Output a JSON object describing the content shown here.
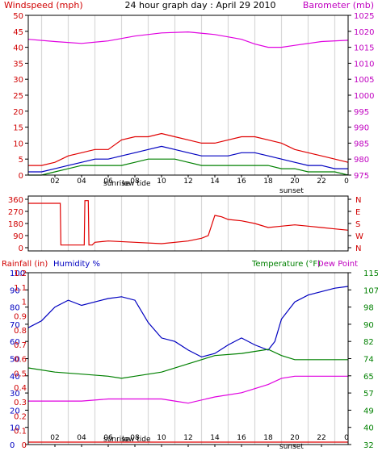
{
  "chart_data": [
    {
      "type": "line",
      "title": "24 hour graph day : April 29 2010",
      "y_left_label": "Windspeed (mph)",
      "y_right_label": "Barometer (mb)",
      "x_ticks": [
        "02",
        "04",
        "06",
        "08",
        "10",
        "12",
        "14",
        "16",
        "18",
        "20",
        "22"
      ],
      "x_end_label": "0",
      "annotations": [
        "sunrise",
        "low tide",
        "sunset"
      ],
      "ylim_left": [
        0,
        50
      ],
      "yticks_left": [
        0,
        5,
        10,
        15,
        20,
        25,
        30,
        35,
        40,
        45,
        50
      ],
      "ylim_right": [
        975,
        1025
      ],
      "yticks_right": [
        975,
        980,
        985,
        990,
        995,
        1000,
        1005,
        1010,
        1015,
        1020,
        1025
      ],
      "series": [
        {
          "axis": "right",
          "color": "#e000e0",
          "x": [
            0,
            2,
            4,
            6,
            8,
            10,
            12,
            14,
            16,
            17,
            18,
            19,
            20,
            22,
            24
          ],
          "values": [
            1017.5,
            1016.8,
            1016.2,
            1017.0,
            1018.5,
            1019.5,
            1019.8,
            1019.0,
            1017.5,
            1016.0,
            1015.0,
            1015.0,
            1015.6,
            1016.8,
            1017.2
          ]
        },
        {
          "axis": "left",
          "color": "#e00000",
          "x": [
            0,
            1,
            2,
            3,
            4,
            5,
            6,
            7,
            8,
            9,
            10,
            11,
            12,
            13,
            14,
            15,
            16,
            17,
            18,
            19,
            20,
            21,
            22,
            23,
            24
          ],
          "values": [
            3,
            3,
            4,
            6,
            7,
            8,
            8,
            11,
            12,
            12,
            13,
            12,
            11,
            10,
            10,
            11,
            12,
            12,
            11,
            10,
            8,
            7,
            6,
            5,
            4
          ]
        },
        {
          "axis": "left",
          "color": "#0000c0",
          "x": [
            0,
            1,
            2,
            3,
            4,
            5,
            6,
            7,
            8,
            9,
            10,
            11,
            12,
            13,
            14,
            15,
            16,
            17,
            18,
            19,
            20,
            21,
            22,
            23,
            24
          ],
          "values": [
            1,
            1,
            2,
            3,
            4,
            5,
            5,
            6,
            7,
            8,
            9,
            8,
            7,
            6,
            6,
            6,
            7,
            7,
            6,
            5,
            4,
            3,
            3,
            2,
            2
          ]
        },
        {
          "axis": "left",
          "color": "#008000",
          "x": [
            0,
            1,
            2,
            3,
            4,
            5,
            6,
            7,
            8,
            9,
            10,
            11,
            12,
            13,
            14,
            15,
            16,
            17,
            18,
            19,
            20,
            21,
            22,
            23,
            24
          ],
          "values": [
            0,
            0,
            1,
            2,
            3,
            3,
            3,
            3,
            4,
            5,
            5,
            5,
            4,
            3,
            3,
            3,
            3,
            3,
            3,
            2,
            2,
            1,
            1,
            1,
            0
          ]
        }
      ]
    },
    {
      "type": "line",
      "y_left_ticks": [
        0,
        90,
        180,
        270,
        360
      ],
      "y_right_ticks": [
        "N",
        "W",
        "S",
        "E",
        "N"
      ],
      "ylim": [
        0,
        360
      ],
      "series": [
        {
          "color": "#e00000",
          "x": [
            0,
            2.4,
            2.45,
            4.2,
            4.25,
            4.5,
            4.55,
            4.8,
            5.0,
            6,
            8,
            10,
            12,
            13,
            13.5,
            14,
            14.5,
            15,
            16,
            17,
            18,
            19,
            20,
            21,
            22,
            23,
            24
          ],
          "values": [
            330,
            330,
            20,
            20,
            350,
            350,
            20,
            20,
            40,
            50,
            40,
            30,
            50,
            70,
            90,
            240,
            230,
            210,
            200,
            180,
            150,
            160,
            170,
            160,
            150,
            140,
            130
          ]
        }
      ]
    },
    {
      "type": "line",
      "y_left_label_1": "Rainfall (in)",
      "y_left_label_2": "Humidity %",
      "y_right_label_1": "Temperature (°F)",
      "y_right_label_2": "Dew Point",
      "humidity_ticks": [
        0,
        10,
        20,
        30,
        40,
        50,
        60,
        70,
        80,
        90,
        100
      ],
      "rainfall_ticks": [
        "0",
        "0.1",
        "0.2",
        "0.3",
        "0.4",
        "0.5",
        "0.6",
        "0.7",
        "0.8",
        "0.9",
        "1",
        "1.1",
        "1.2"
      ],
      "temperature_ticks": [
        32,
        40,
        49,
        57,
        65,
        74,
        82,
        90,
        98,
        107,
        115
      ],
      "ylim_humidity": [
        0,
        100
      ],
      "ylim_temperature": [
        32,
        115
      ],
      "series": [
        {
          "axis": "humidity",
          "color": "#0000c0",
          "x": [
            0,
            1,
            2,
            3,
            4,
            5,
            6,
            7,
            8,
            9,
            10,
            11,
            12,
            13,
            14,
            15,
            16,
            17,
            18,
            18.5,
            19,
            20,
            21,
            22,
            23,
            24
          ],
          "values": [
            68,
            72,
            80,
            84,
            81,
            83,
            85,
            86,
            84,
            71,
            62,
            60,
            55,
            51,
            53,
            58,
            62,
            58,
            55,
            60,
            73,
            83,
            87,
            89,
            91,
            92
          ]
        },
        {
          "axis": "temperature",
          "color": "#008000",
          "x": [
            0,
            2,
            4,
            6,
            7,
            8,
            10,
            12,
            14,
            16,
            18,
            19,
            20,
            22,
            24
          ],
          "values": [
            69,
            67,
            66,
            65,
            64,
            65,
            67,
            71,
            75,
            76,
            78,
            75,
            73,
            73,
            73
          ]
        },
        {
          "axis": "temperature",
          "color": "#e000e0",
          "x": [
            0,
            2,
            4,
            6,
            8,
            10,
            11,
            12,
            14,
            16,
            18,
            19,
            20,
            22,
            24
          ],
          "values": [
            53,
            53,
            53,
            54,
            54,
            54,
            53,
            52,
            55,
            57,
            61,
            64,
            65,
            65,
            65
          ]
        },
        {
          "axis": "rainfall",
          "color": "#e00000",
          "x": [
            0,
            24
          ],
          "values": [
            0,
            0
          ]
        }
      ]
    }
  ]
}
